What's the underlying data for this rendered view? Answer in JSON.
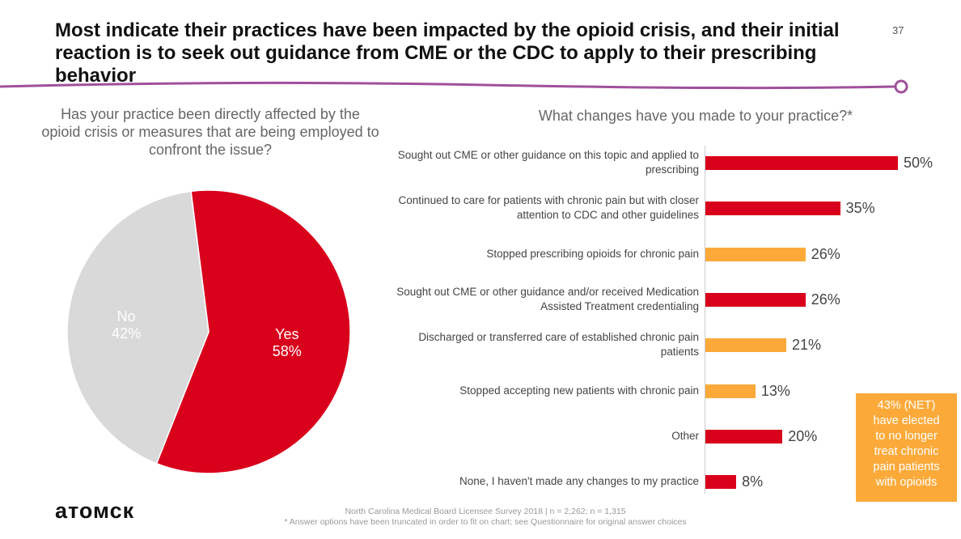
{
  "title": "Most indicate their practices have been impacted by the opioid crisis, and their initial reaction is to seek out guidance from CME or the CDC to apply to their prescribing behavior",
  "page_number": "37",
  "colors": {
    "red": "#d9001b",
    "orange": "#fbaa3a",
    "gray": "#d9d9d9",
    "accent_line": "#a0509b"
  },
  "chart_data": [
    {
      "type": "pie",
      "title": "Has your practice been directly affected by the opioid crisis or measures that are being employed to confront the issue?",
      "slices": [
        {
          "label": "Yes",
          "value": 58,
          "display": "58%",
          "color": "#d9001b"
        },
        {
          "label": "No",
          "value": 42,
          "display": "42%",
          "color": "#d9d9d9"
        }
      ]
    },
    {
      "type": "bar",
      "orientation": "horizontal",
      "title": "What changes have you made to your practice?*",
      "xlim": [
        0,
        50
      ],
      "categories": [
        "Sought out CME or other guidance on this topic and applied to prescribing",
        "Continued to care for patients with chronic pain but with closer attention to CDC and other guidelines",
        "Stopped prescribing opioids for chronic pain",
        "Sought out CME or other guidance and/or received Medication Assisted Treatment credentialing",
        "Discharged or transferred care of established chronic pain patients",
        "Stopped accepting new patients with chronic pain",
        "Other",
        "None, I haven't made any changes to my practice"
      ],
      "values": [
        50,
        35,
        26,
        26,
        21,
        13,
        20,
        8
      ],
      "labels": [
        "50%",
        "35%",
        "26%",
        "26%",
        "21%",
        "13%",
        "20%",
        "8%"
      ],
      "bar_colors": [
        "#d9001b",
        "#d9001b",
        "#fbaa3a",
        "#d9001b",
        "#fbaa3a",
        "#fbaa3a",
        "#d9001b",
        "#d9001b"
      ]
    }
  ],
  "callout": "43% (NET)\nhave elected\nto no longer\ntreat chronic\npain patients\nwith opioids",
  "source_line1": "North Carolina Medical Board Licensee Survey 2018 | n = 2,262; n = 1,315",
  "source_line2": "* Answer options have been truncated in order to fit on chart; see Questionnaire for original answer choices",
  "logo": "aTOMCK"
}
